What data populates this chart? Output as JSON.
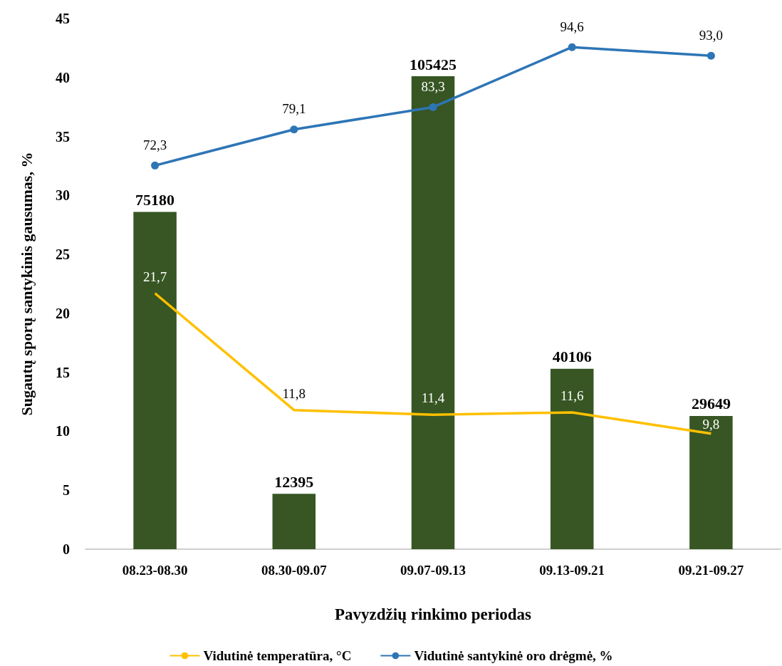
{
  "chart_data": {
    "type": "bar",
    "xlabel": "Pavyzdžių rinkimo periodas",
    "ylabel": "Sugautų sporų santykinis gausumas, %",
    "categories": [
      "08.23-08.30",
      "08.30-09.07",
      "09.07-09.13",
      "09.13-09.21",
      "09.21-09.27"
    ],
    "series": [
      {
        "color": "#375623",
        "values": [
          28.6,
          4.7,
          40.1,
          15.3,
          11.3
        ]
      },
      {
        "type": "line",
        "name": "Vidutinė temperatūra, °C",
        "color": "#ffc000",
        "marker": "none",
        "values": [
          21.7,
          11.8,
          11.4,
          11.6,
          9.8
        ],
        "value_labels": [
          "21,7",
          "11,8",
          "11,4",
          "11,6",
          "9,8"
        ]
      },
      {
        "type": "line",
        "name": "Vidutinė santykinė oro drėgmė, %",
        "color": "#2e75b6",
        "marker": "circle",
        "axis": "y2",
        "values": [
          72.3,
          79.1,
          83.3,
          94.6,
          93.0
        ],
        "value_labels": [
          "72,3",
          "79,1",
          "83,3",
          "94,6",
          "93,0"
        ]
      }
    ],
    "annotations": [
      {
        "text": "75180",
        "x": "08.23-08.30",
        "y": 28.6
      },
      {
        "text": "12395",
        "x": "08.30-09.07",
        "y": 4.7
      },
      {
        "text": "105425",
        "x": "09.07-09.13",
        "y": 40.1
      },
      {
        "text": "40106",
        "x": "09.13-09.21",
        "y": 15.3
      },
      {
        "text": "29649",
        "x": "09.21-09.27",
        "y": 11.3
      }
    ],
    "ylim": [
      0,
      45
    ],
    "yticks": [
      0,
      5,
      10,
      15,
      20,
      25,
      30,
      35,
      40,
      45
    ],
    "grid": false,
    "legend": "bottom",
    "line_style": "solid"
  }
}
